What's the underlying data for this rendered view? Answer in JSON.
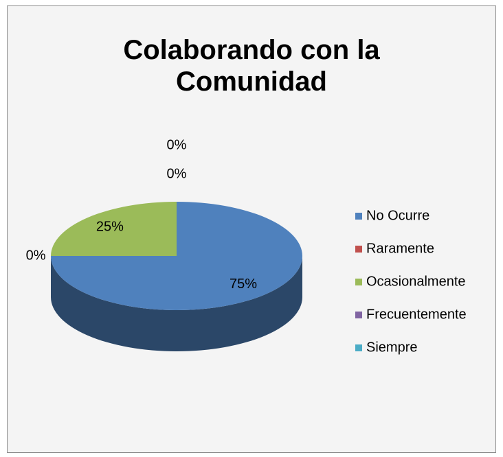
{
  "chart_data": {
    "type": "pie",
    "title": "Colaborando con la Comunidad",
    "categories": [
      "No Ocurre",
      "Raramente",
      "Ocasionalmente",
      "Frecuentemente",
      "Siempre"
    ],
    "values": [
      75,
      0,
      25,
      0,
      0
    ],
    "value_labels": [
      "75%",
      "0%",
      "25%",
      "0%",
      "0%"
    ],
    "colors": [
      "#4f81bd",
      "#c0504d",
      "#9bbb59",
      "#8064a2",
      "#4bacc6"
    ],
    "legend": "right"
  }
}
